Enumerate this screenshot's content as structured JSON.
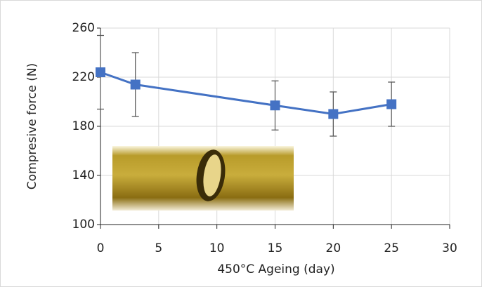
{
  "chart_data": {
    "type": "line",
    "xlabel": "450°C Ageing (day)",
    "ylabel": "Compresive force (N)",
    "x": [
      0,
      3,
      15,
      20,
      25
    ],
    "values": [
      224,
      214,
      197,
      190,
      198
    ],
    "errors": [
      30,
      26,
      20,
      18,
      18
    ],
    "color": "#4472c4",
    "xlim": [
      0,
      30
    ],
    "xticks": [
      0,
      5,
      10,
      15,
      20,
      25,
      30
    ],
    "ylim": [
      100,
      260
    ],
    "yticks": [
      100,
      140,
      180,
      220,
      260
    ],
    "grid": true
  }
}
